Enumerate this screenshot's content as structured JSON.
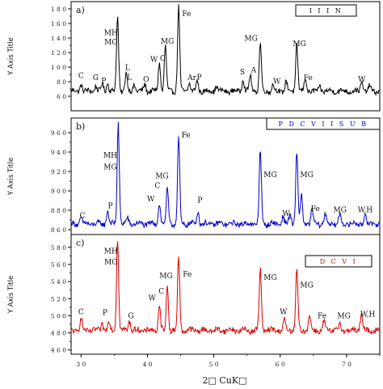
{
  "chart_data": [
    {
      "type": "line",
      "panel_label": "a)",
      "legend": "I I I N",
      "color": "#000000",
      "ylabel": "Y Axis Title",
      "ylim": [
        40,
        190
      ],
      "yticks": [
        60,
        80,
        100,
        120,
        140,
        160,
        180
      ],
      "ytick_labels": [
        "6 0",
        "8 0",
        "1 0 0",
        "1 2 0",
        "1 4 0",
        "1 6 0",
        "1 8 0"
      ],
      "xlim": [
        28.5,
        75
      ],
      "baseline": 67,
      "peaks": [
        {
          "x": 30.0,
          "h": 10
        },
        {
          "x": 32.2,
          "h": 8
        },
        {
          "x": 33.2,
          "h": 10
        },
        {
          "x": 34.0,
          "h": 12
        },
        {
          "x": 35.5,
          "h": 102
        },
        {
          "x": 36.8,
          "h": 25
        },
        {
          "x": 38.0,
          "h": 10
        },
        {
          "x": 39.6,
          "h": 10
        },
        {
          "x": 41.8,
          "h": 40
        },
        {
          "x": 42.7,
          "h": 62
        },
        {
          "x": 44.7,
          "h": 116
        },
        {
          "x": 46.3,
          "h": 12
        },
        {
          "x": 47.5,
          "h": 14
        },
        {
          "x": 50.4,
          "h": 8
        },
        {
          "x": 54.4,
          "h": 18
        },
        {
          "x": 55.5,
          "h": 22
        },
        {
          "x": 57.0,
          "h": 66
        },
        {
          "x": 58.9,
          "h": 9
        },
        {
          "x": 60.9,
          "h": 14
        },
        {
          "x": 62.5,
          "h": 65
        },
        {
          "x": 63.8,
          "h": 18
        },
        {
          "x": 66.0,
          "h": 6
        },
        {
          "x": 72.3,
          "h": 14
        },
        {
          "x": 73.5,
          "h": 7
        }
      ],
      "annotations": [
        {
          "text": "C",
          "x": 30.0,
          "y": 85
        },
        {
          "text": "G",
          "x": 32.2,
          "y": 82
        },
        {
          "text": "P",
          "x": 33.4,
          "y": 78
        },
        {
          "text": "MH",
          "x": 34.5,
          "y": 144
        },
        {
          "text": "MG",
          "x": 34.5,
          "y": 131
        },
        {
          "text": "L",
          "x": 37.0,
          "y": 96
        },
        {
          "text": "L",
          "x": 37.3,
          "y": 83
        },
        {
          "text": "O",
          "x": 39.8,
          "y": 80
        },
        {
          "text": "W",
          "x": 41.0,
          "y": 107
        },
        {
          "text": "C",
          "x": 42.3,
          "y": 109
        },
        {
          "text": "MG",
          "x": 43.0,
          "y": 132
        },
        {
          "text": "Fe",
          "x": 45.9,
          "y": 170
        },
        {
          "text": "Ar",
          "x": 46.7,
          "y": 82
        },
        {
          "text": "P",
          "x": 47.8,
          "y": 83
        },
        {
          "text": "S",
          "x": 54.3,
          "y": 90
        },
        {
          "text": "A",
          "x": 56.0,
          "y": 93
        },
        {
          "text": "MG",
          "x": 55.6,
          "y": 136
        },
        {
          "text": "MG",
          "x": 62.9,
          "y": 129
        },
        {
          "text": "W",
          "x": 59.5,
          "y": 77
        },
        {
          "text": "Fe",
          "x": 64.2,
          "y": 82
        },
        {
          "text": "W",
          "x": 72.3,
          "y": 80
        }
      ]
    },
    {
      "type": "line",
      "panel_label": "b)",
      "legend": "P D C V I I S U B",
      "color": "#0000cc",
      "ylabel": "Y Axis Title",
      "ylim": [
        855,
        975
      ],
      "yticks": [
        860,
        880,
        900,
        920,
        940,
        960
      ],
      "ytick_labels": [
        "8 6 0",
        "8 8 0",
        "9 0 0",
        "9 2 0",
        "9 4 0",
        "9 6 0"
      ],
      "xlim": [
        28.5,
        75
      ],
      "baseline": 866,
      "peaks": [
        {
          "x": 30.0,
          "h": 7
        },
        {
          "x": 34.0,
          "h": 14
        },
        {
          "x": 35.6,
          "h": 104
        },
        {
          "x": 37.0,
          "h": 6
        },
        {
          "x": 41.8,
          "h": 22
        },
        {
          "x": 43.0,
          "h": 36
        },
        {
          "x": 44.7,
          "h": 88
        },
        {
          "x": 47.6,
          "h": 14
        },
        {
          "x": 57.0,
          "h": 76
        },
        {
          "x": 60.4,
          "h": 8
        },
        {
          "x": 61.5,
          "h": 10
        },
        {
          "x": 62.5,
          "h": 74
        },
        {
          "x": 63.2,
          "h": 30
        },
        {
          "x": 64.8,
          "h": 14
        },
        {
          "x": 66.8,
          "h": 10
        },
        {
          "x": 69.0,
          "h": 10
        },
        {
          "x": 72.8,
          "h": 10
        }
      ],
      "annotations": [
        {
          "text": "C",
          "x": 30.2,
          "y": 872
        },
        {
          "text": "P",
          "x": 34.4,
          "y": 882
        },
        {
          "text": "MH",
          "x": 34.4,
          "y": 934
        },
        {
          "text": "MG",
          "x": 34.4,
          "y": 922
        },
        {
          "text": "MG",
          "x": 42.2,
          "y": 913
        },
        {
          "text": "C",
          "x": 41.5,
          "y": 903
        },
        {
          "text": "W",
          "x": 40.5,
          "y": 889
        },
        {
          "text": "Fe",
          "x": 45.8,
          "y": 955
        },
        {
          "text": "P",
          "x": 47.9,
          "y": 888
        },
        {
          "text": "MG",
          "x": 58.5,
          "y": 914
        },
        {
          "text": "MG",
          "x": 64.0,
          "y": 914
        },
        {
          "text": "W",
          "x": 60.9,
          "y": 874
        },
        {
          "text": "Fe",
          "x": 65.3,
          "y": 879
        },
        {
          "text": "MG",
          "x": 69.0,
          "y": 878
        },
        {
          "text": "W,H",
          "x": 72.8,
          "y": 878
        }
      ]
    },
    {
      "type": "line",
      "panel_label": "c)",
      "legend": "D C V I",
      "color": "#dd0000",
      "ylabel": "Y Axis Title",
      "ylim": [
        455,
        595
      ],
      "yticks": [
        460,
        480,
        500,
        520,
        540,
        560,
        580
      ],
      "ytick_labels": [
        "4 6 0",
        "4 8 0",
        "5 0 0",
        "5 2 0",
        "5 4 0",
        "5 6 0",
        "5 8 0"
      ],
      "xlim": [
        28.5,
        75
      ],
      "baseline": 483,
      "peaks": [
        {
          "x": 30.0,
          "h": 14
        },
        {
          "x": 33.2,
          "h": 8
        },
        {
          "x": 34.2,
          "h": 10
        },
        {
          "x": 35.5,
          "h": 108
        },
        {
          "x": 37.3,
          "h": 12
        },
        {
          "x": 41.8,
          "h": 28
        },
        {
          "x": 43.0,
          "h": 52
        },
        {
          "x": 44.7,
          "h": 86
        },
        {
          "x": 57.0,
          "h": 72
        },
        {
          "x": 60.6,
          "h": 12
        },
        {
          "x": 62.5,
          "h": 70
        },
        {
          "x": 64.4,
          "h": 18
        },
        {
          "x": 66.6,
          "h": 10
        },
        {
          "x": 69.0,
          "h": 8
        },
        {
          "x": 72.2,
          "h": 18
        }
      ],
      "annotations": [
        {
          "text": "C",
          "x": 30.0,
          "y": 502
        },
        {
          "text": "P",
          "x": 33.6,
          "y": 501
        },
        {
          "text": "G",
          "x": 37.5,
          "y": 497
        },
        {
          "text": "MH",
          "x": 34.5,
          "y": 573
        },
        {
          "text": "MG",
          "x": 34.5,
          "y": 560
        },
        {
          "text": "W",
          "x": 40.7,
          "y": 518
        },
        {
          "text": "C",
          "x": 42.1,
          "y": 526
        },
        {
          "text": "MG",
          "x": 42.8,
          "y": 544
        },
        {
          "text": "Fe",
          "x": 46.0,
          "y": 546
        },
        {
          "text": "MG",
          "x": 58.5,
          "y": 542
        },
        {
          "text": "MG",
          "x": 64.0,
          "y": 533
        },
        {
          "text": "W",
          "x": 60.5,
          "y": 502
        },
        {
          "text": "Fe",
          "x": 66.3,
          "y": 497
        },
        {
          "text": "MG",
          "x": 69.6,
          "y": 497
        },
        {
          "text": "W,H",
          "x": 73.2,
          "y": 499
        }
      ]
    }
  ],
  "x_axis": {
    "label": "2□ CuK□",
    "ticks": [
      30,
      40,
      50,
      60,
      70
    ],
    "tick_labels": [
      "3 0",
      "4 0",
      "5 0",
      "6 0",
      "7 0"
    ]
  }
}
